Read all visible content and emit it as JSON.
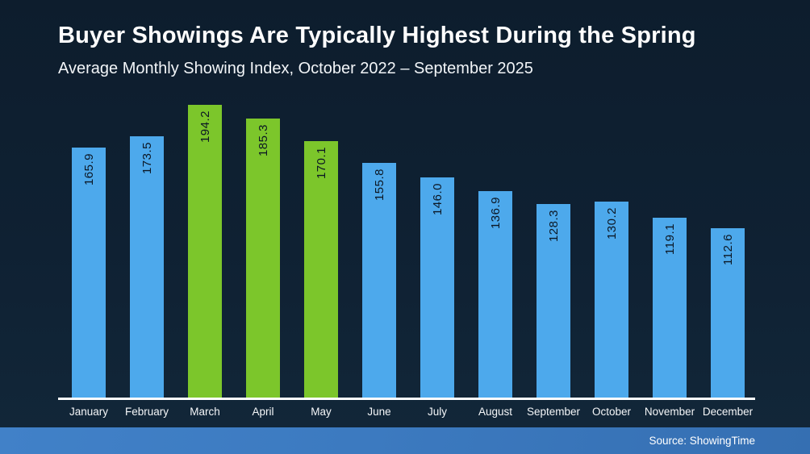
{
  "header": {
    "title": "Buyer Showings Are Typically Highest During the Spring",
    "subtitle": "Average Monthly Showing Index, October 2022 – September 2025"
  },
  "footer": {
    "source": "Source: ShowingTime"
  },
  "colors": {
    "background_top": "#0d1d2d",
    "background_bottom": "#122739",
    "bar_default": "#4da9ec",
    "bar_highlight": "#7cc62b",
    "value_label": "#0c1724",
    "axis_line": "#ffffff",
    "title_text": "#ffffff",
    "footer_gradient_left": "#4181c8",
    "footer_gradient_right": "#356fb2"
  },
  "chart_data": {
    "type": "bar",
    "title": "Buyer Showings Are Typically Highest During the Spring",
    "subtitle": "Average Monthly Showing Index, October 2022 – September 2025",
    "categories": [
      "January",
      "February",
      "March",
      "April",
      "May",
      "June",
      "July",
      "August",
      "September",
      "October",
      "November",
      "December"
    ],
    "values": [
      165.9,
      173.5,
      194.2,
      185.3,
      170.1,
      155.8,
      146.0,
      136.9,
      128.3,
      130.2,
      119.1,
      112.6
    ],
    "value_labels": [
      "165.9",
      "173.5",
      "194.2",
      "185.3",
      "170.1",
      "155.8",
      "146.0",
      "136.9",
      "128.3",
      "130.2",
      "119.1",
      "112.6"
    ],
    "highlighted_categories": [
      "March",
      "April",
      "May"
    ],
    "value_label_rotation": "vertical-bottom-to-top",
    "xlabel": "",
    "ylabel": "",
    "ylim": [
      0,
      200
    ],
    "grid": false,
    "legend": false,
    "source": "Source: ShowingTime"
  }
}
